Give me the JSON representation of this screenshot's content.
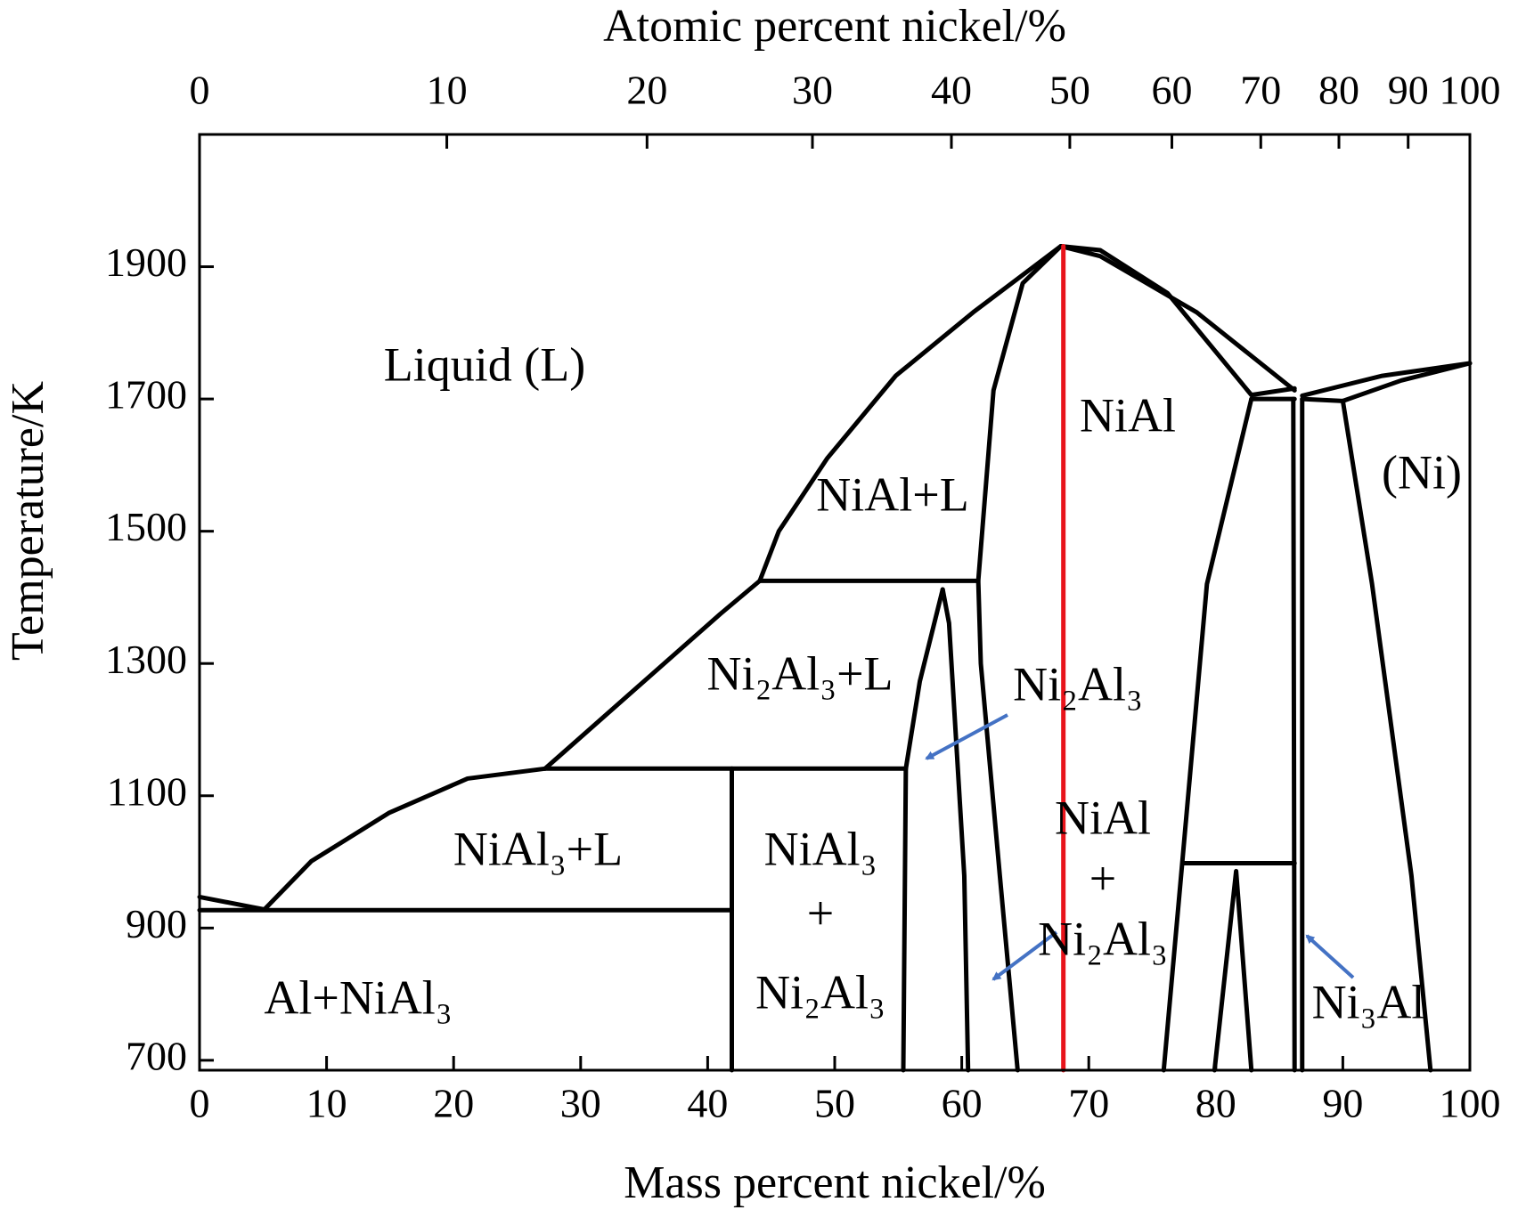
{
  "chart_data": {
    "type": "line",
    "xlabel": "Mass percent nickel/%",
    "x2label": "Atomic percent nickel/%",
    "ylabel": "Temperature/K",
    "xlim": [
      0,
      100
    ],
    "ylim": [
      685,
      2100
    ],
    "xticks": [
      0,
      10,
      20,
      30,
      40,
      50,
      60,
      70,
      80,
      90,
      100
    ],
    "x2ticks": [
      0,
      10,
      20,
      30,
      40,
      50,
      60,
      70,
      80,
      90,
      100
    ],
    "yticks": [
      700,
      900,
      1100,
      1300,
      1500,
      1700,
      1900
    ],
    "series": [
      {
        "color": "#000000",
        "x": [
          0,
          5.1
        ],
        "values": [
          947,
          928
        ]
      },
      {
        "color": "#000000",
        "x": [
          0,
          41.9
        ],
        "values": [
          927,
          927
        ]
      },
      {
        "color": "#000000",
        "x": [
          5.1,
          8.8,
          14.9,
          21.1,
          27.2
        ],
        "values": [
          928,
          1001,
          1074,
          1126,
          1141
        ]
      },
      {
        "color": "#000000",
        "x": [
          27.2,
          55.6
        ],
        "values": [
          1141,
          1141
        ]
      },
      {
        "color": "#000000",
        "x": [
          27.2,
          34.1,
          41.0,
          44.1
        ],
        "values": [
          1141,
          1258,
          1375,
          1425
        ]
      },
      {
        "color": "#000000",
        "x": [
          44.1,
          61.3
        ],
        "values": [
          1425,
          1425
        ]
      },
      {
        "color": "#000000",
        "x": [
          44.1,
          45.6,
          49.4,
          54.8,
          60.9,
          67.8
        ],
        "values": [
          1425,
          1500,
          1610,
          1735,
          1831,
          1931
        ]
      },
      {
        "color": "#000000",
        "x": [
          67.8,
          70.9,
          76.2,
          82.8,
          86.2
        ],
        "values": [
          1931,
          1925,
          1860,
          1706,
          1716
        ]
      },
      {
        "color": "#000000",
        "x": [
          64.4,
          63.0,
          61.5,
          61.3,
          62.5,
          64.8,
          67.8
        ],
        "values": [
          685,
          979,
          1300,
          1425,
          1713,
          1875,
          1931
        ]
      },
      {
        "color": "#000000",
        "x": [
          67.8,
          70.9,
          78.5,
          86.2
        ],
        "values": [
          1931,
          1916,
          1831,
          1713
        ]
      },
      {
        "color": "#000000",
        "x": [
          82.8,
          79.3,
          77.4,
          75.9
        ],
        "values": [
          1700,
          1420,
          1008,
          685
        ]
      },
      {
        "color": "#000000",
        "x": [
          82.8,
          86.2
        ],
        "values": [
          1700,
          1700
        ]
      },
      {
        "color": "#000000",
        "x": [
          86.1,
          86.2
        ],
        "values": [
          1700,
          685
        ]
      },
      {
        "color": "#000000",
        "x": [
          86.8,
          86.8
        ],
        "values": [
          1700,
          685
        ]
      },
      {
        "color": "#000000",
        "x": [
          86.8,
          90.0
        ],
        "values": [
          1700,
          1697
        ]
      },
      {
        "color": "#000000",
        "x": [
          90.0,
          92.3,
          95.4,
          96.9
        ],
        "values": [
          1697,
          1420,
          979,
          685
        ]
      },
      {
        "color": "#000000",
        "x": [
          86.8,
          93.1,
          100
        ],
        "values": [
          1705,
          1735,
          1754
        ]
      },
      {
        "color": "#000000",
        "x": [
          90.0,
          94.6,
          100
        ],
        "values": [
          1697,
          1728,
          1754
        ]
      },
      {
        "color": "#000000",
        "x": [
          41.9,
          41.9
        ],
        "values": [
          1141,
          685
        ]
      },
      {
        "color": "#000000",
        "x": [
          55.4,
          55.6,
          56.7,
          58.5
        ],
        "values": [
          685,
          1141,
          1273,
          1412
        ]
      },
      {
        "color": "#000000",
        "x": [
          58.5,
          59.0,
          60.2,
          60.5
        ],
        "values": [
          1412,
          1361,
          979,
          685
        ]
      },
      {
        "color": "#000000",
        "x": [
          77.4,
          86.2
        ],
        "values": [
          998,
          998
        ]
      },
      {
        "color": "#000000",
        "x": [
          79.9,
          81.6,
          82.8
        ],
        "values": [
          685,
          986,
          685
        ]
      },
      {
        "color": "#e8141b",
        "x": [
          68,
          68
        ],
        "values": [
          1931,
          685
        ]
      }
    ],
    "annotations": [
      "Liquid (L)",
      "NiAl",
      "NiAl+L",
      "(Ni)",
      "Ni₂Al₃+L",
      "Ni₂Al₃",
      "NiAl₃+L",
      "NiAl₃",
      "+",
      "Ni₂Al₃",
      "NiAl",
      "+",
      "Ni₂Al₃",
      "Al+NiAl₃",
      "Ni₃Al"
    ]
  }
}
